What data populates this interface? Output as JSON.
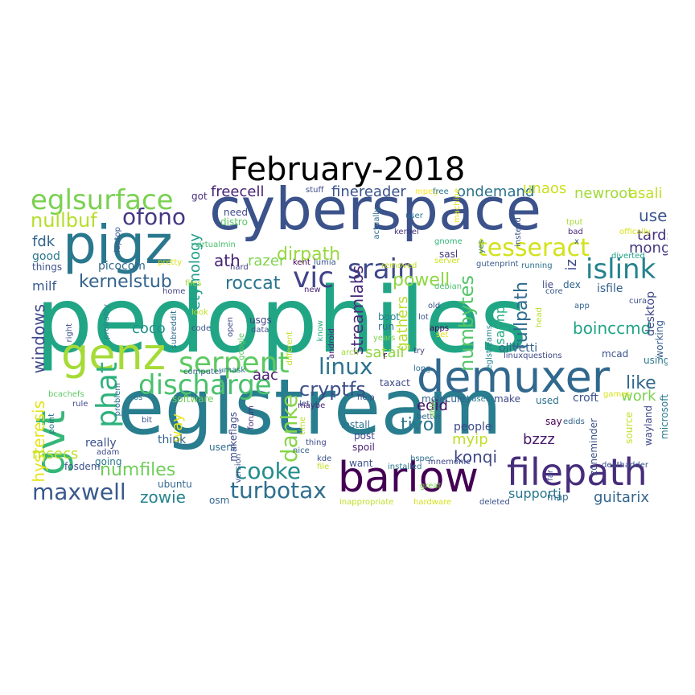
{
  "title": "February-2018",
  "palette": "viridis",
  "words": [
    {
      "text": "pedophiles",
      "color": "#21a685"
    },
    {
      "text": "eglstream",
      "color": "#287d8e"
    },
    {
      "text": "cyberspace",
      "color": "#3b528b"
    },
    {
      "text": "barlow",
      "color": "#440154"
    },
    {
      "text": "filepath",
      "color": "#472d7b"
    },
    {
      "text": "demuxer",
      "color": "#31688e"
    },
    {
      "text": "pigz",
      "color": "#2a788e"
    },
    {
      "text": "genz",
      "color": "#a5db36"
    },
    {
      "text": "gvt",
      "color": "#35b779"
    },
    {
      "text": "eglsurface",
      "color": "#7ad151"
    },
    {
      "text": "serpent",
      "color": "#5ec962"
    },
    {
      "text": "discharge",
      "color": "#4ac16d"
    },
    {
      "text": "tesseract",
      "color": "#d2e21b"
    },
    {
      "text": "srain",
      "color": "#3e4989"
    },
    {
      "text": "islink",
      "color": "#26828e"
    },
    {
      "text": "vic",
      "color": "#414487"
    },
    {
      "text": "linux",
      "color": "#2c728e"
    },
    {
      "text": "phat",
      "color": "#2db27d"
    },
    {
      "text": "maxwell",
      "color": "#38598c"
    },
    {
      "text": "turbotax",
      "color": "#2e6f8e"
    },
    {
      "text": "cooke",
      "color": "#228c8d"
    },
    {
      "text": "danke",
      "color": "#86d549"
    },
    {
      "text": "ofono",
      "color": "#443983"
    },
    {
      "text": "nullbuf",
      "color": "#b5de2b"
    },
    {
      "text": "numbytes",
      "color": "#54c568"
    },
    {
      "text": "cryptfs",
      "color": "#3d4e8a"
    },
    {
      "text": "kernelstub",
      "color": "#33638d"
    },
    {
      "text": "roccat",
      "color": "#2a768e"
    },
    {
      "text": "streamlabs",
      "color": "#472a7a"
    },
    {
      "text": "fullpath",
      "color": "#2f6c8e"
    },
    {
      "text": "dirpath",
      "color": "#98d83e"
    },
    {
      "text": "powell",
      "color": "#8fd744"
    },
    {
      "text": "numfiles",
      "color": "#6ece58"
    },
    {
      "text": "hysteresis",
      "color": "#e5e419"
    },
    {
      "text": "windows",
      "color": "#3f4889"
    },
    {
      "text": "freecell",
      "color": "#482475"
    },
    {
      "text": "finereader",
      "color": "#3b528b"
    },
    {
      "text": "ondemand",
      "color": "#2c728e"
    },
    {
      "text": "unaos",
      "color": "#cae11f"
    },
    {
      "text": "newroot",
      "color": "#a2da37"
    },
    {
      "text": "asali",
      "color": "#bddf26"
    },
    {
      "text": "use",
      "color": "#3a548c"
    },
    {
      "text": "tards",
      "color": "#46327e"
    },
    {
      "text": "mongo",
      "color": "#453882"
    },
    {
      "text": "boinccmd",
      "color": "#20a386"
    },
    {
      "text": "like",
      "color": "#31688e"
    },
    {
      "text": "work",
      "color": "#7ad151"
    },
    {
      "text": "zowie",
      "color": "#25848e"
    },
    {
      "text": "supportj",
      "color": "#2a778e"
    },
    {
      "text": "guitarix",
      "color": "#32658e"
    },
    {
      "text": "konqi",
      "color": "#3f4788"
    },
    {
      "text": "tivo",
      "color": "#2a768e"
    },
    {
      "text": "edid",
      "color": "#471365"
    },
    {
      "text": "myip",
      "color": "#bddf26"
    },
    {
      "text": "bzzz",
      "color": "#481b6d"
    },
    {
      "text": "isapnp",
      "color": "#25ac82"
    },
    {
      "text": "gathers",
      "color": "#b8de29"
    },
    {
      "text": "etymology",
      "color": "#1f9e89"
    },
    {
      "text": "ath",
      "color": "#482576"
    },
    {
      "text": "razer",
      "color": "#7fd34e"
    },
    {
      "text": "aac",
      "color": "#48186a"
    },
    {
      "text": "coco",
      "color": "#21918c"
    },
    {
      "text": "msecs",
      "color": "#c0df25"
    },
    {
      "text": "satail",
      "color": "#90d743"
    },
    {
      "text": "fdk",
      "color": "#32648e"
    },
    {
      "text": "good",
      "color": "#2a788e"
    },
    {
      "text": "things",
      "color": "#3b528b"
    },
    {
      "text": "milf",
      "color": "#38598c"
    },
    {
      "text": "picocom",
      "color": "#31688e"
    },
    {
      "text": "laptop",
      "color": "#39568c"
    },
    {
      "text": "got",
      "color": "#46307e"
    },
    {
      "text": "need",
      "color": "#3e4989"
    },
    {
      "text": "distro",
      "color": "#5ac864"
    },
    {
      "text": "virtualmin",
      "color": "#4ac16d"
    },
    {
      "text": "pretty",
      "color": "#dde318"
    },
    {
      "text": "hard",
      "color": "#433e85"
    },
    {
      "text": "files",
      "color": "#a5db36"
    },
    {
      "text": "home",
      "color": "#414487"
    },
    {
      "text": "kent",
      "color": "#440154"
    },
    {
      "text": "lumia",
      "color": "#3b528b"
    },
    {
      "text": "removed",
      "color": "#c2df23"
    },
    {
      "text": "debian",
      "color": "#4ac16d"
    },
    {
      "text": "server",
      "color": "#cde11d"
    },
    {
      "text": "sasl",
      "color": "#453781"
    },
    {
      "text": "gnome",
      "color": "#35b779"
    },
    {
      "text": "kernel",
      "color": "#46327e"
    },
    {
      "text": "actually",
      "color": "#2e6e8e"
    },
    {
      "text": "user",
      "color": "#2c728e"
    },
    {
      "text": "mpeg",
      "color": "#fde725"
    },
    {
      "text": "free",
      "color": "#2a768e"
    },
    {
      "text": "stuff",
      "color": "#3e4989"
    },
    {
      "text": "machine",
      "color": "#e7e419"
    },
    {
      "text": "instead",
      "color": "#3b528b"
    },
    {
      "text": "tput",
      "color": "#a8db34"
    },
    {
      "text": "bad",
      "color": "#482878"
    },
    {
      "text": "yes",
      "color": "#2a788e"
    },
    {
      "text": "gutenprint",
      "color": "#38598c"
    },
    {
      "text": "running",
      "color": "#2d708e"
    },
    {
      "text": "offically",
      "color": "#d8e219"
    },
    {
      "text": "diverted",
      "color": "#1fa187"
    },
    {
      "text": "lie",
      "color": "#3e4989"
    },
    {
      "text": "core",
      "color": "#38588c"
    },
    {
      "text": "dex",
      "color": "#32648e"
    },
    {
      "text": "isfile",
      "color": "#34618d"
    },
    {
      "text": "cura",
      "color": "#3d4d8a"
    },
    {
      "text": "desktop",
      "color": "#3f4788"
    },
    {
      "text": "app",
      "color": "#32648e"
    },
    {
      "text": "head",
      "color": "#b5de2b"
    },
    {
      "text": "working",
      "color": "#365c8d"
    },
    {
      "text": "eglstreams",
      "color": "#25848e"
    },
    {
      "text": "old",
      "color": "#3b528b"
    },
    {
      "text": "apps",
      "color": "#440154"
    },
    {
      "text": "boot",
      "color": "#26828e"
    },
    {
      "text": "run",
      "color": "#2c728e"
    },
    {
      "text": "years",
      "color": "#7fd34e"
    },
    {
      "text": "usgs",
      "color": "#414487"
    },
    {
      "text": "data",
      "color": "#3b528b"
    },
    {
      "text": "android",
      "color": "#472a7a"
    },
    {
      "text": "know",
      "color": "#29af7f"
    },
    {
      "text": "new",
      "color": "#482475"
    },
    {
      "text": "olivetti",
      "color": "#32648e"
    },
    {
      "text": "linuxquestions",
      "color": "#3e4989"
    },
    {
      "text": "mcad",
      "color": "#3b528b"
    },
    {
      "text": "using",
      "color": "#2a788e"
    },
    {
      "text": "try",
      "color": "#414487"
    },
    {
      "text": "long",
      "color": "#2c728e"
    },
    {
      "text": "taxact",
      "color": "#3e4989"
    },
    {
      "text": "look",
      "color": "#bddf26"
    },
    {
      "text": "code",
      "color": "#3b528b"
    },
    {
      "text": "open",
      "color": "#3e4989"
    },
    {
      "text": "google",
      "color": "#5ec962"
    },
    {
      "text": "different",
      "color": "#c2df23"
    },
    {
      "text": "arch",
      "color": "#a0da39"
    },
    {
      "text": "probably",
      "color": "#25848e"
    },
    {
      "text": "right",
      "color": "#3b528b"
    },
    {
      "text": "subreddit",
      "color": "#2e6e8e"
    },
    {
      "text": "computer",
      "color": "#32648e"
    },
    {
      "text": "umask",
      "color": "#2c728e"
    },
    {
      "text": "software",
      "color": "#6ece58"
    },
    {
      "text": "maybe",
      "color": "#482878"
    },
    {
      "text": "let",
      "color": "#3e4989"
    },
    {
      "text": "help",
      "color": "#3b528b"
    },
    {
      "text": "molecules",
      "color": "#32648e"
    },
    {
      "text": "based",
      "color": "#2a788e"
    },
    {
      "text": "make",
      "color": "#3e4989"
    },
    {
      "text": "used",
      "color": "#2c728e"
    },
    {
      "text": "croft",
      "color": "#3b528b"
    },
    {
      "text": "games",
      "color": "#d8e219"
    },
    {
      "text": "bcachefs",
      "color": "#5ec962"
    },
    {
      "text": "os",
      "color": "#2c728e"
    },
    {
      "text": "problem",
      "color": "#2e6e8e"
    },
    {
      "text": "bit",
      "color": "#3b528b"
    },
    {
      "text": "way",
      "color": "#e7e419"
    },
    {
      "text": "rule",
      "color": "#3e4989"
    },
    {
      "text": "think",
      "color": "#32648e"
    },
    {
      "text": "really",
      "color": "#3b528b"
    },
    {
      "text": "point",
      "color": "#2c728e"
    },
    {
      "text": "adam",
      "color": "#3e4989"
    },
    {
      "text": "going",
      "color": "#2a788e"
    },
    {
      "text": "fosdem",
      "color": "#3b528b"
    },
    {
      "text": "ubuntu",
      "color": "#32648e"
    },
    {
      "text": "users",
      "color": "#2e6e8e"
    },
    {
      "text": "makeflags",
      "color": "#3e4989"
    },
    {
      "text": "version",
      "color": "#3b528b"
    },
    {
      "text": "forum",
      "color": "#482878"
    },
    {
      "text": "time",
      "color": "#bddf26"
    },
    {
      "text": "nice",
      "color": "#32648e"
    },
    {
      "text": "thing",
      "color": "#3e4989"
    },
    {
      "text": "kde",
      "color": "#3b528b"
    },
    {
      "text": "file",
      "color": "#c2df23"
    },
    {
      "text": "install",
      "color": "#2c728e"
    },
    {
      "text": "post",
      "color": "#3e4989"
    },
    {
      "text": "spoil",
      "color": "#482475"
    },
    {
      "text": "want",
      "color": "#3b528b"
    },
    {
      "text": "installed",
      "color": "#2a788e"
    },
    {
      "text": "better",
      "color": "#32648e"
    },
    {
      "text": "able",
      "color": "#7ad151"
    },
    {
      "text": "bspec",
      "color": "#2e6e8e"
    },
    {
      "text": "mnemonic",
      "color": "#3e4989"
    },
    {
      "text": "great",
      "color": "#7fd34e"
    },
    {
      "text": "hardware",
      "color": "#d8e219"
    },
    {
      "text": "deleted",
      "color": "#3b528b"
    },
    {
      "text": "inappropriate",
      "color": "#bddf26"
    },
    {
      "text": "osm",
      "color": "#32648e"
    },
    {
      "text": "people",
      "color": "#3e4989"
    },
    {
      "text": "zoneminder",
      "color": "#3b528b"
    },
    {
      "text": "say",
      "color": "#440154"
    },
    {
      "text": "edids",
      "color": "#32648e"
    },
    {
      "text": "source",
      "color": "#c2df23"
    },
    {
      "text": "wayland",
      "color": "#3e4989"
    },
    {
      "text": "microsoft",
      "color": "#2a788e"
    },
    {
      "text": "deathadder",
      "color": "#3b528b"
    },
    {
      "text": "map",
      "color": "#2e6e8e"
    },
    {
      "text": "far",
      "color": "#3e4989"
    },
    {
      "text": "lot",
      "color": "#3b528b"
    },
    {
      "text": "set",
      "color": "#e7e419"
    },
    {
      "text": "x",
      "color": "#3b528b"
    },
    {
      "text": "r",
      "color": "#440154"
    },
    {
      "text": "iz",
      "color": "#3e4989"
    }
  ]
}
